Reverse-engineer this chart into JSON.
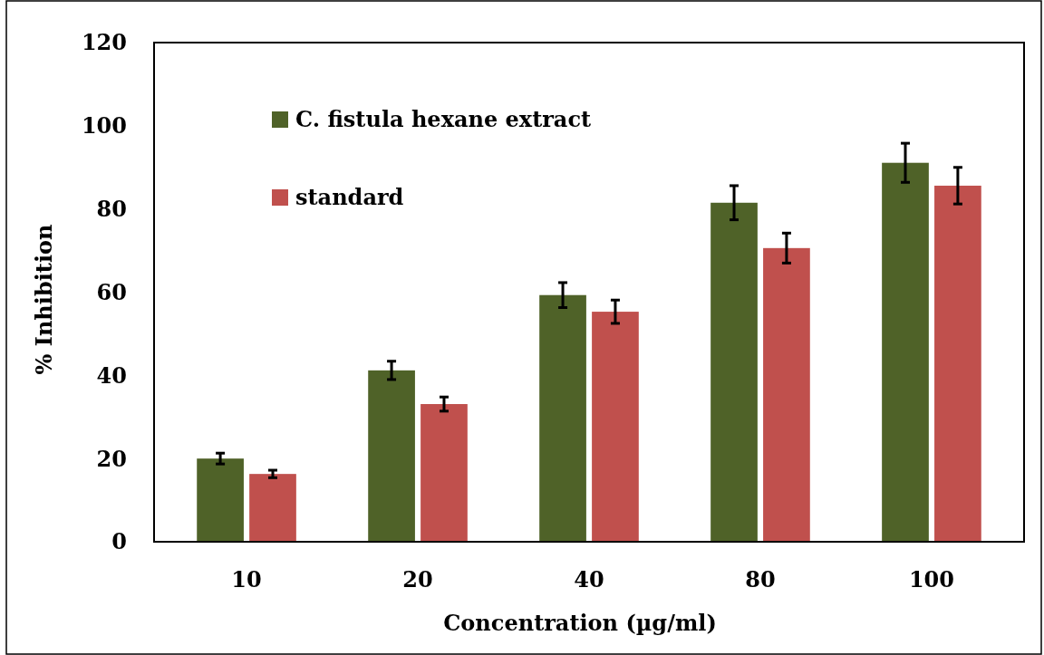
{
  "chart_data": {
    "type": "bar",
    "xlabel": "Concentration (µg/ml)",
    "ylabel": "% Inhibition",
    "categories": [
      "10",
      "20",
      "40",
      "80",
      "100"
    ],
    "series": [
      {
        "name": "C. fistula hexane extract",
        "color": "#4f6228",
        "values": [
          20.0,
          41.2,
          59.3,
          81.5,
          91.1
        ],
        "errors": [
          1.3,
          2.2,
          3.0,
          4.1,
          4.7
        ]
      },
      {
        "name": "standard",
        "color": "#c0504d",
        "values": [
          16.3,
          33.1,
          55.3,
          70.6,
          85.6
        ],
        "errors": [
          0.9,
          1.7,
          2.8,
          3.6,
          4.4
        ]
      }
    ],
    "ylim": [
      0,
      120
    ],
    "yticks": [
      0,
      20,
      40,
      60,
      80,
      100,
      120
    ],
    "grid": false,
    "legend": "top left"
  }
}
